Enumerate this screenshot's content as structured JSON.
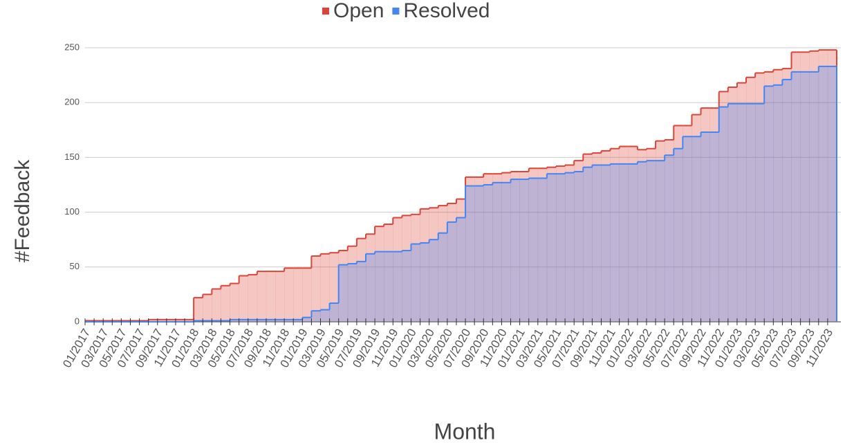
{
  "chart_data": {
    "type": "stepped-area",
    "xlabel": "Month",
    "ylabel": "#Feedback",
    "categories": [
      "01/2017",
      null,
      "03/2017",
      null,
      "05/2017",
      null,
      "07/2017",
      null,
      "09/2017",
      null,
      "11/2017",
      null,
      "01/2018",
      null,
      "03/2018",
      null,
      "05/2018",
      null,
      "07/2018",
      null,
      "09/2018",
      null,
      "11/2018",
      null,
      "01/2019",
      null,
      "03/2019",
      null,
      "05/2019",
      null,
      "07/2019",
      null,
      "09/2019",
      null,
      "11/2019",
      null,
      "01/2020",
      null,
      "03/2020",
      null,
      "05/2020",
      null,
      "07/2020",
      null,
      "09/2020",
      null,
      "11/2020",
      null,
      "01/2021",
      null,
      "03/2021",
      null,
      "05/2021",
      null,
      "07/2021",
      null,
      "09/2021",
      null,
      "11/2021",
      null,
      "01/2022",
      null,
      "03/2022",
      null,
      "05/2022",
      null,
      "07/2022",
      null,
      "09/2022",
      null,
      "11/2022",
      null,
      "01/2023",
      null,
      "03/2023",
      null,
      "05/2023",
      null,
      "07/2023",
      null,
      "09/2023",
      null,
      "11/2023"
    ],
    "series": [
      {
        "name": "Open",
        "color": "#db4437",
        "values": [
          1,
          1,
          1,
          1,
          1,
          1,
          1,
          2,
          2,
          2,
          2,
          2,
          22,
          25,
          30,
          33,
          35,
          42,
          43,
          46,
          46,
          46,
          49,
          49,
          49,
          60,
          62,
          63,
          65,
          69,
          76,
          80,
          87,
          89,
          95,
          97,
          98,
          103,
          104,
          106,
          108,
          112,
          132,
          132,
          135,
          135,
          136,
          137,
          137,
          140,
          140,
          141,
          142,
          143,
          147,
          153,
          154,
          156,
          158,
          160,
          160,
          157,
          158,
          165,
          166,
          179,
          179,
          189,
          195,
          195,
          210,
          214,
          218,
          223,
          227,
          228,
          230,
          231,
          246,
          246,
          247,
          248,
          248
        ]
      },
      {
        "name": "Resolved",
        "color": "#4285f4",
        "values": [
          0,
          0,
          0,
          0,
          0,
          0,
          0,
          0,
          0,
          0,
          0,
          0,
          1,
          1,
          1,
          1,
          2,
          2,
          2,
          2,
          2,
          2,
          2,
          2,
          4,
          10,
          11,
          17,
          52,
          53,
          55,
          62,
          64,
          64,
          64,
          65,
          71,
          72,
          75,
          81,
          91,
          95,
          124,
          124,
          125,
          127,
          127,
          130,
          130,
          131,
          131,
          135,
          135,
          136,
          137,
          141,
          143,
          143,
          144,
          144,
          144,
          146,
          147,
          147,
          152,
          158,
          169,
          169,
          173,
          173,
          196,
          199,
          199,
          199,
          199,
          215,
          216,
          221,
          228,
          228,
          228,
          233,
          233
        ]
      }
    ],
    "ylim": [
      0,
      250
    ],
    "yticks": [
      0,
      50,
      100,
      150,
      200,
      250
    ],
    "grid": true,
    "legend": "top"
  }
}
